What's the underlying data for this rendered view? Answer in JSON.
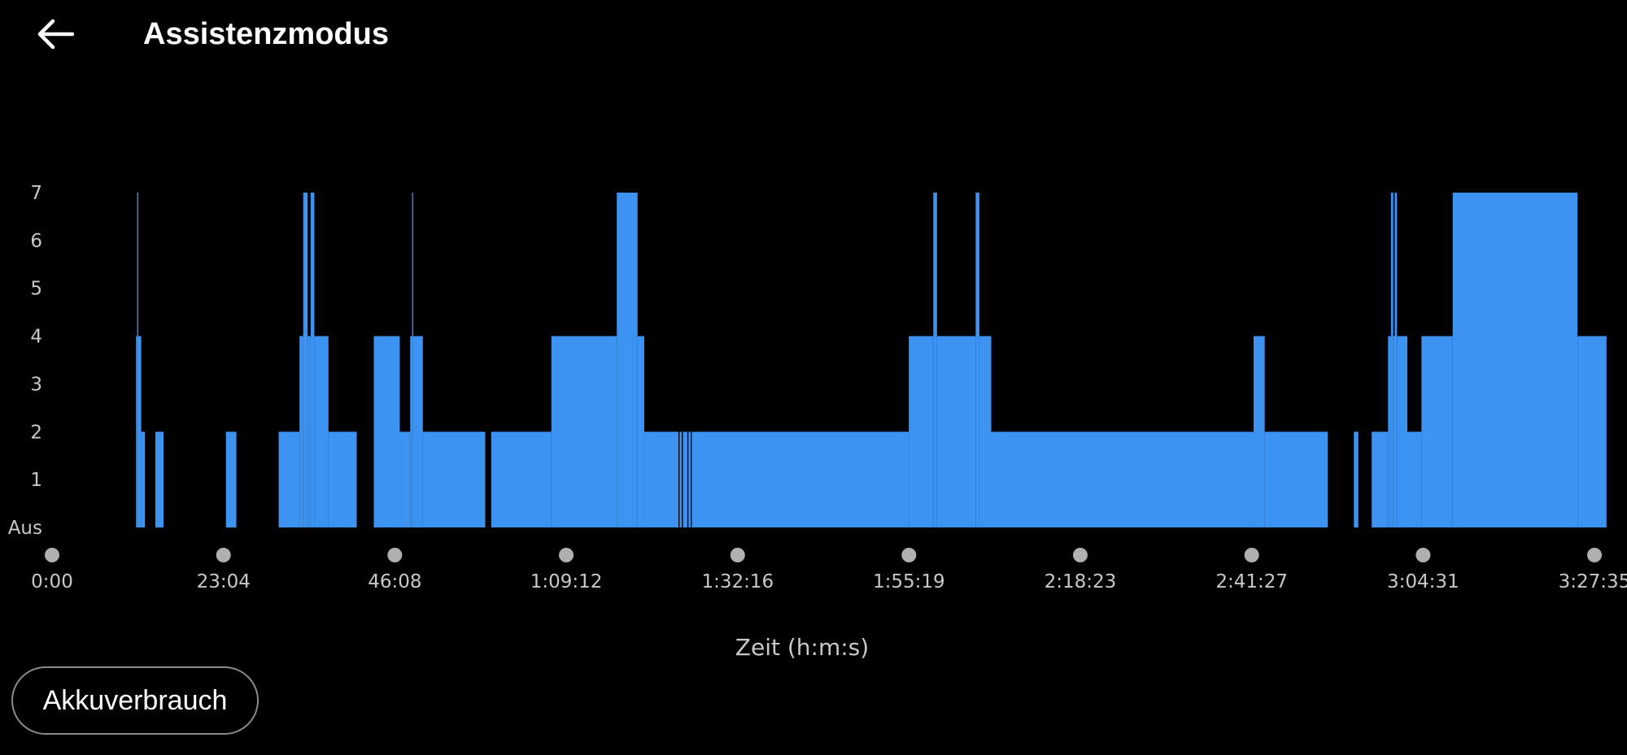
{
  "header": {
    "back_icon": "arrow-left-icon",
    "title": "Assistenzmodus"
  },
  "colors": {
    "background": "#000000",
    "bar": "#3d93f2",
    "tick_text": "#c8c8c8",
    "marker": "#b0b0b0"
  },
  "chart_data": {
    "type": "area",
    "step": true,
    "xlabel": "Zeit (h:m:s)",
    "ylabel": "",
    "y_tick_labels": [
      "Aus",
      "1",
      "2",
      "3",
      "4",
      "5",
      "6",
      "7"
    ],
    "ylim": [
      0,
      7
    ],
    "x_tick_labels": [
      "0:00",
      "23:04",
      "46:08",
      "1:09:12",
      "1:32:16",
      "1:55:19",
      "2:18:23",
      "2:41:27",
      "3:04:31",
      "3:27:35"
    ],
    "x_ticks_minutes": [
      0,
      23.07,
      46.13,
      69.2,
      92.27,
      115.32,
      138.38,
      161.45,
      184.52,
      207.58
    ],
    "xlim_minutes": [
      0,
      207.58
    ],
    "x_unit": "minutes",
    "series": [
      {
        "points": [
          [
            11.3,
            4
          ],
          [
            11.45,
            7
          ],
          [
            11.6,
            4
          ],
          [
            12.0,
            2
          ],
          [
            12.5,
            0
          ],
          [
            13.9,
            2
          ],
          [
            15.0,
            0
          ],
          [
            23.4,
            2
          ],
          [
            24.8,
            0
          ],
          [
            30.5,
            2
          ],
          [
            33.3,
            4
          ],
          [
            33.8,
            7
          ],
          [
            34.4,
            4
          ],
          [
            34.8,
            7
          ],
          [
            35.3,
            4
          ],
          [
            37.2,
            2
          ],
          [
            41.0,
            0
          ],
          [
            43.3,
            4
          ],
          [
            46.8,
            2
          ],
          [
            48.2,
            4
          ],
          [
            48.45,
            7
          ],
          [
            48.6,
            4
          ],
          [
            49.9,
            2
          ],
          [
            58.3,
            0
          ],
          [
            59.1,
            2
          ],
          [
            67.2,
            4
          ],
          [
            76.0,
            7
          ],
          [
            78.8,
            4
          ],
          [
            79.7,
            2
          ],
          [
            84.3,
            0
          ],
          [
            84.45,
            2
          ],
          [
            84.75,
            0
          ],
          [
            84.9,
            2
          ],
          [
            85.5,
            0
          ],
          [
            85.65,
            2
          ],
          [
            85.95,
            0
          ],
          [
            86.1,
            2
          ],
          [
            115.3,
            4
          ],
          [
            118.6,
            7
          ],
          [
            119.1,
            4
          ],
          [
            124.3,
            7
          ],
          [
            124.8,
            4
          ],
          [
            126.4,
            2
          ],
          [
            161.7,
            4
          ],
          [
            163.2,
            2
          ],
          [
            171.7,
            0
          ],
          [
            175.2,
            2
          ],
          [
            175.8,
            0
          ],
          [
            177.6,
            2
          ],
          [
            179.8,
            4
          ],
          [
            180.2,
            7
          ],
          [
            180.5,
            4
          ],
          [
            180.7,
            7
          ],
          [
            181.0,
            4
          ],
          [
            182.4,
            2
          ],
          [
            184.3,
            4
          ],
          [
            188.5,
            7
          ],
          [
            205.3,
            4
          ],
          [
            209.2,
            0
          ]
        ]
      }
    ]
  },
  "footer": {
    "button_label": "Akkuverbrauch"
  }
}
